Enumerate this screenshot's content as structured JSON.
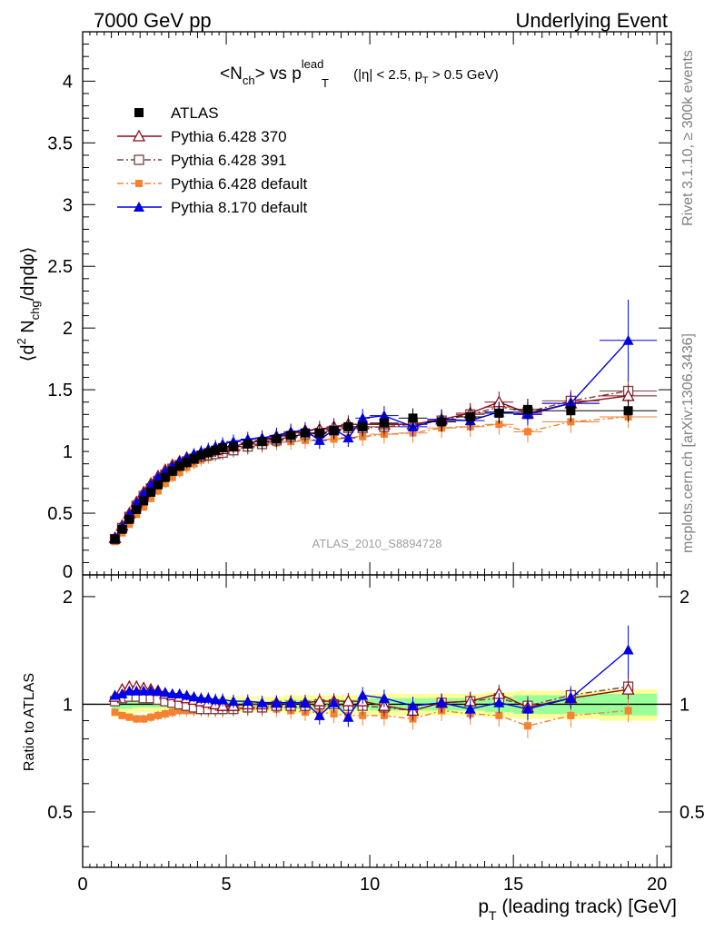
{
  "header": {
    "left": "7000 GeV pp",
    "right": "Underlying Event"
  },
  "side_text": {
    "rivet": "Rivet 3.1.10, ≥ 300k events",
    "mcplots": "mcplots.cern.ch [arXiv:1306.3436]"
  },
  "chart_data": {
    "type": "scatter",
    "title_parts": {
      "lt": "<N",
      "sub_ch": "ch",
      "vs": "> vs p",
      "sup_lead": "lead",
      "sub_T": "T",
      "cut1": " (|η| < 2.5, p",
      "cut_T": "T",
      "cut2": " > 0.5 GeV)"
    },
    "ylabel_parts": {
      "open": "⟨d",
      "sup2": "2",
      "N": " N",
      "sub_chg": "chg",
      "rest": "/dηdφ⟩"
    },
    "ratio_ylabel": "Ratio to ATLAS",
    "xlabel_parts": {
      "p": "p",
      "sub_T": "T",
      "rest": " (leading track) [GeV]"
    },
    "watermark": "ATLAS_2010_S8894728",
    "xlim": [
      0,
      20.5
    ],
    "ylim_main": [
      0,
      4.4
    ],
    "ylim_ratio": [
      0.35,
      2.3
    ],
    "ratio_log_scale": true,
    "x_ticks": [
      "0",
      "5",
      "10",
      "15",
      "20"
    ],
    "y_ticks_main": [
      "0",
      "0.5",
      "1",
      "1.5",
      "2",
      "2.5",
      "3",
      "3.5",
      "4"
    ],
    "y_ticks_ratio": [
      "0.5",
      "1",
      "2"
    ],
    "legend_position": "top-left",
    "x": [
      1.0,
      1.25,
      1.5,
      1.75,
      2.0,
      2.25,
      2.5,
      2.75,
      3.0,
      3.25,
      3.5,
      3.75,
      4.0,
      4.25,
      4.5,
      4.75,
      5.0,
      5.5,
      6.0,
      6.5,
      7.0,
      7.5,
      8.0,
      8.5,
      9.0,
      9.5,
      10.0,
      11.0,
      12.0,
      13.0,
      14.0,
      15.0,
      16.0,
      18.0
    ],
    "x_err": [
      0.125,
      0.125,
      0.125,
      0.125,
      0.125,
      0.125,
      0.125,
      0.125,
      0.125,
      0.125,
      0.125,
      0.125,
      0.125,
      0.125,
      0.125,
      0.125,
      0.25,
      0.25,
      0.25,
      0.25,
      0.25,
      0.25,
      0.25,
      0.25,
      0.25,
      0.25,
      0.5,
      0.5,
      0.5,
      0.5,
      0.5,
      0.5,
      1.0,
      1.0
    ],
    "data_positions": [
      1.125,
      1.375,
      1.625,
      1.875,
      2.125,
      2.375,
      2.625,
      2.875,
      3.125,
      3.375,
      3.625,
      3.875,
      4.125,
      4.375,
      4.625,
      4.875,
      5.25,
      5.75,
      6.25,
      6.75,
      7.25,
      7.75,
      8.25,
      8.75,
      9.25,
      9.75,
      10.5,
      11.5,
      12.5,
      13.5,
      14.5,
      15.5,
      17.0,
      19.0
    ],
    "ratio_band_outer": [
      0.08,
      0.07,
      0.06,
      0.055,
      0.05,
      0.05,
      0.05,
      0.05,
      0.05,
      0.05,
      0.05,
      0.05,
      0.05,
      0.05,
      0.05,
      0.05,
      0.05,
      0.05,
      0.05,
      0.05,
      0.06,
      0.06,
      0.06,
      0.06,
      0.06,
      0.06,
      0.07,
      0.07,
      0.07,
      0.07,
      0.08,
      0.09,
      0.09,
      0.1
    ],
    "ratio_band_inner": [
      0.03,
      0.03,
      0.03,
      0.02,
      0.02,
      0.02,
      0.02,
      0.02,
      0.02,
      0.02,
      0.02,
      0.02,
      0.02,
      0.02,
      0.02,
      0.02,
      0.02,
      0.02,
      0.02,
      0.02,
      0.03,
      0.03,
      0.03,
      0.03,
      0.03,
      0.03,
      0.04,
      0.04,
      0.04,
      0.04,
      0.05,
      0.06,
      0.06,
      0.07
    ],
    "series": [
      {
        "name": "ATLAS",
        "color": "#000000",
        "marker": "filled-square",
        "line": "none",
        "values": [
          0.29,
          0.37,
          0.45,
          0.53,
          0.6,
          0.67,
          0.73,
          0.79,
          0.84,
          0.88,
          0.91,
          0.94,
          0.97,
          0.99,
          1.01,
          1.03,
          1.04,
          1.06,
          1.08,
          1.1,
          1.13,
          1.15,
          1.15,
          1.17,
          1.2,
          1.2,
          1.23,
          1.27,
          1.24,
          1.28,
          1.31,
          1.34,
          1.33,
          1.33
        ],
        "ratio": [
          1,
          1,
          1,
          1,
          1,
          1,
          1,
          1,
          1,
          1,
          1,
          1,
          1,
          1,
          1,
          1,
          1,
          1,
          1,
          1,
          1,
          1,
          1,
          1,
          1,
          1,
          1,
          1,
          1,
          1,
          1,
          1,
          1,
          1
        ]
      },
      {
        "name": "Pythia 6.428 370",
        "color": "#8b0a1a",
        "marker": "open-triangle",
        "line": "solid",
        "values": [
          0.3,
          0.4,
          0.5,
          0.59,
          0.67,
          0.74,
          0.8,
          0.85,
          0.89,
          0.92,
          0.95,
          0.97,
          0.99,
          1.0,
          1.01,
          1.02,
          1.04,
          1.07,
          1.09,
          1.12,
          1.15,
          1.17,
          1.18,
          1.2,
          1.22,
          1.22,
          1.22,
          1.22,
          1.26,
          1.31,
          1.4,
          1.31,
          1.39,
          1.45
        ],
        "ratio": [
          1.05,
          1.1,
          1.12,
          1.12,
          1.11,
          1.1,
          1.09,
          1.07,
          1.06,
          1.05,
          1.04,
          1.03,
          1.02,
          1.01,
          1.0,
          0.99,
          0.99,
          1.0,
          1.0,
          1.01,
          1.01,
          1.01,
          1.02,
          1.02,
          1.02,
          1.02,
          0.99,
          0.96,
          1.01,
          1.02,
          1.07,
          0.98,
          1.04,
          1.1
        ]
      },
      {
        "name": "Pythia 6.428 391",
        "color": "#7a4040",
        "marker": "open-square",
        "line": "dash-dot",
        "values": [
          0.29,
          0.38,
          0.47,
          0.56,
          0.64,
          0.7,
          0.76,
          0.81,
          0.86,
          0.89,
          0.92,
          0.94,
          0.96,
          0.97,
          0.98,
          0.99,
          1.01,
          1.04,
          1.06,
          1.09,
          1.12,
          1.14,
          1.15,
          1.17,
          1.19,
          1.19,
          1.2,
          1.22,
          1.25,
          1.3,
          1.36,
          1.32,
          1.41,
          1.49
        ],
        "ratio": [
          1.02,
          1.04,
          1.05,
          1.05,
          1.04,
          1.04,
          1.03,
          1.02,
          1.01,
          1.0,
          0.99,
          0.98,
          0.97,
          0.97,
          0.97,
          0.97,
          0.97,
          0.98,
          0.98,
          0.99,
          0.99,
          0.99,
          1.0,
          1.0,
          0.99,
          0.99,
          0.98,
          0.96,
          1.01,
          1.02,
          1.04,
          0.99,
          1.06,
          1.12
        ]
      },
      {
        "name": "Pythia 6.428 default",
        "color": "#f58231",
        "marker": "filled-square-small",
        "line": "dash-dot",
        "values": [
          0.27,
          0.34,
          0.41,
          0.49,
          0.55,
          0.62,
          0.68,
          0.74,
          0.79,
          0.83,
          0.87,
          0.9,
          0.93,
          0.95,
          0.97,
          0.99,
          1.01,
          1.03,
          1.05,
          1.07,
          1.08,
          1.09,
          1.09,
          1.1,
          1.11,
          1.12,
          1.14,
          1.15,
          1.19,
          1.2,
          1.22,
          1.16,
          1.24,
          1.28
        ],
        "ratio": [
          0.95,
          0.93,
          0.92,
          0.91,
          0.91,
          0.92,
          0.93,
          0.94,
          0.95,
          0.96,
          0.96,
          0.96,
          0.96,
          0.96,
          0.96,
          0.96,
          0.97,
          0.97,
          0.97,
          0.97,
          0.96,
          0.95,
          0.95,
          0.94,
          0.93,
          0.93,
          0.93,
          0.91,
          0.96,
          0.94,
          0.93,
          0.87,
          0.93,
          0.96
        ]
      },
      {
        "name": "Pythia 8.170 default",
        "color": "#0000e6",
        "marker": "filled-triangle",
        "line": "solid",
        "values": [
          0.3,
          0.39,
          0.49,
          0.58,
          0.66,
          0.73,
          0.79,
          0.84,
          0.88,
          0.92,
          0.95,
          0.98,
          1.0,
          1.02,
          1.04,
          1.06,
          1.08,
          1.1,
          1.11,
          1.13,
          1.16,
          1.17,
          1.09,
          1.18,
          1.11,
          1.27,
          1.29,
          1.2,
          1.26,
          1.25,
          1.32,
          1.3,
          1.39,
          1.9
        ],
        "ratio": [
          1.06,
          1.07,
          1.09,
          1.09,
          1.09,
          1.09,
          1.09,
          1.08,
          1.07,
          1.07,
          1.06,
          1.05,
          1.04,
          1.04,
          1.03,
          1.03,
          1.02,
          1.02,
          1.01,
          1.01,
          1.01,
          1.01,
          0.93,
          1.01,
          0.92,
          1.06,
          1.04,
          0.99,
          1.01,
          0.97,
          1.01,
          0.97,
          1.04,
          1.42
        ]
      }
    ]
  }
}
